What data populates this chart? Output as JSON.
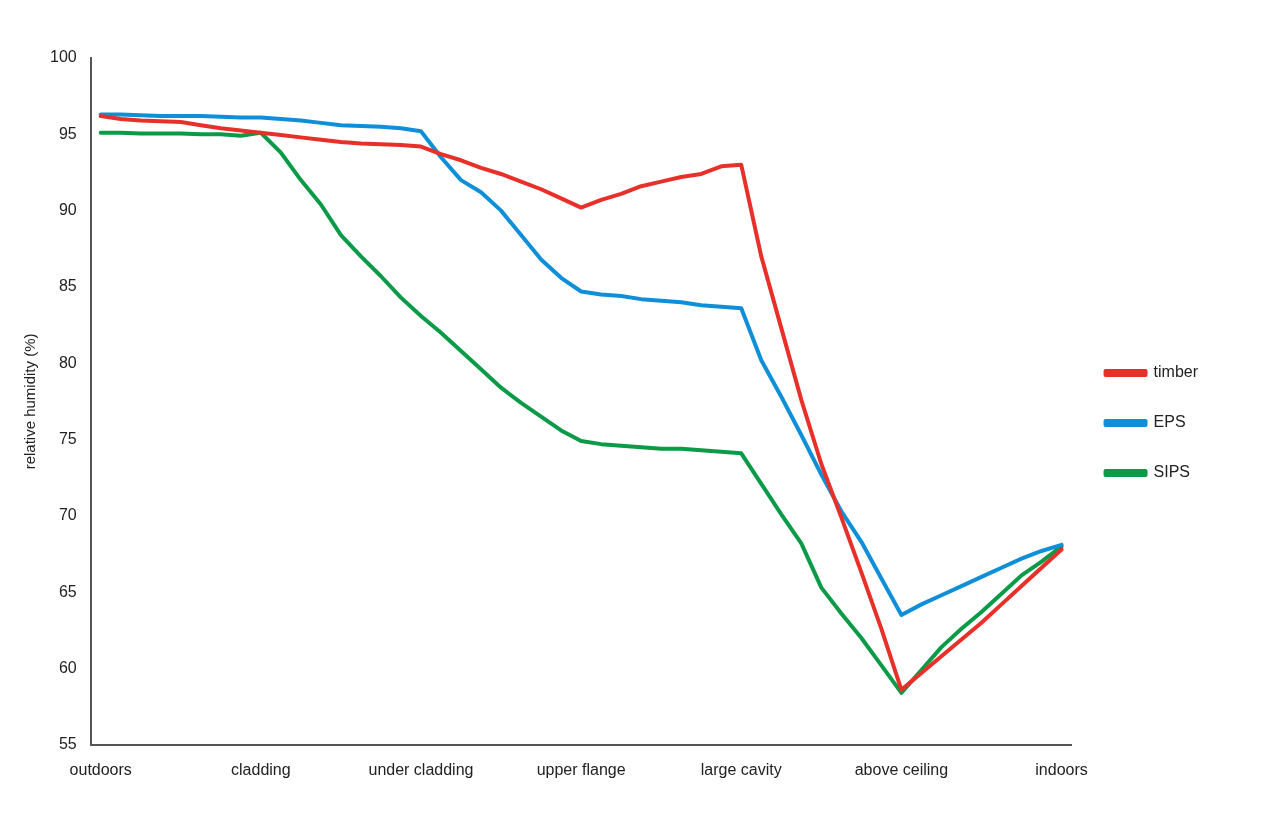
{
  "chart_data": {
    "type": "line",
    "ylabel": "relative humidity (%)",
    "categories": [
      "outdoors",
      null,
      null,
      null,
      null,
      null,
      null,
      null,
      "cladding",
      null,
      null,
      null,
      null,
      null,
      null,
      null,
      "under cladding",
      null,
      null,
      null,
      null,
      null,
      null,
      null,
      "upper flange",
      null,
      null,
      null,
      null,
      null,
      null,
      null,
      "large cavity",
      null,
      null,
      null,
      null,
      null,
      null,
      null,
      "above ceiling",
      null,
      null,
      null,
      null,
      null,
      null,
      null,
      "indoors"
    ],
    "ylim": [
      55,
      100
    ],
    "yticks": [
      55,
      60,
      65,
      70,
      75,
      80,
      85,
      90,
      95,
      100
    ],
    "grid": false,
    "legend": "right",
    "marker": "none",
    "line_style": "solid",
    "series": [
      {
        "name": "timber",
        "color": "#e8302a",
        "values": [
          96.2,
          96.0,
          95.9,
          95.85,
          95.8,
          95.6,
          95.4,
          95.25,
          95.1,
          94.95,
          94.8,
          94.65,
          94.5,
          94.4,
          94.35,
          94.3,
          94.2,
          93.7,
          93.3,
          92.8,
          92.4,
          91.9,
          91.4,
          90.8,
          90.2,
          90.7,
          91.1,
          91.6,
          91.9,
          92.2,
          92.4,
          92.9,
          93.0,
          87.0,
          82.3,
          77.6,
          73.4,
          69.9,
          66.3,
          62.6,
          58.6,
          59.7,
          60.8,
          61.9,
          63.0,
          64.2,
          65.4,
          66.6,
          67.8
        ]
      },
      {
        "name": "EPS",
        "color": "#0f8fd8",
        "values": [
          96.3,
          96.3,
          96.25,
          96.2,
          96.2,
          96.2,
          96.15,
          96.1,
          96.1,
          96.0,
          95.9,
          95.75,
          95.6,
          95.55,
          95.5,
          95.4,
          95.2,
          93.5,
          92.0,
          91.2,
          90.0,
          88.4,
          86.8,
          85.6,
          84.7,
          84.5,
          84.4,
          84.2,
          84.1,
          84.0,
          83.8,
          83.7,
          83.6,
          80.2,
          77.8,
          75.3,
          72.7,
          70.3,
          68.3,
          65.9,
          63.5,
          64.2,
          64.8,
          65.4,
          66.0,
          66.6,
          67.2,
          67.7,
          68.1
        ]
      },
      {
        "name": "SIPS",
        "color": "#0a9a48",
        "values": [
          95.1,
          95.1,
          95.05,
          95.05,
          95.05,
          95.0,
          95.0,
          94.9,
          95.1,
          93.8,
          92.0,
          90.4,
          88.4,
          87.0,
          85.7,
          84.3,
          83.1,
          82.0,
          80.8,
          79.6,
          78.4,
          77.4,
          76.5,
          75.6,
          74.9,
          74.7,
          74.6,
          74.5,
          74.4,
          74.4,
          74.3,
          74.2,
          74.1,
          72.1,
          70.1,
          68.2,
          65.3,
          63.6,
          62.0,
          60.2,
          58.4,
          59.9,
          61.4,
          62.6,
          63.7,
          64.9,
          66.1,
          67.0,
          68.0
        ]
      }
    ]
  }
}
